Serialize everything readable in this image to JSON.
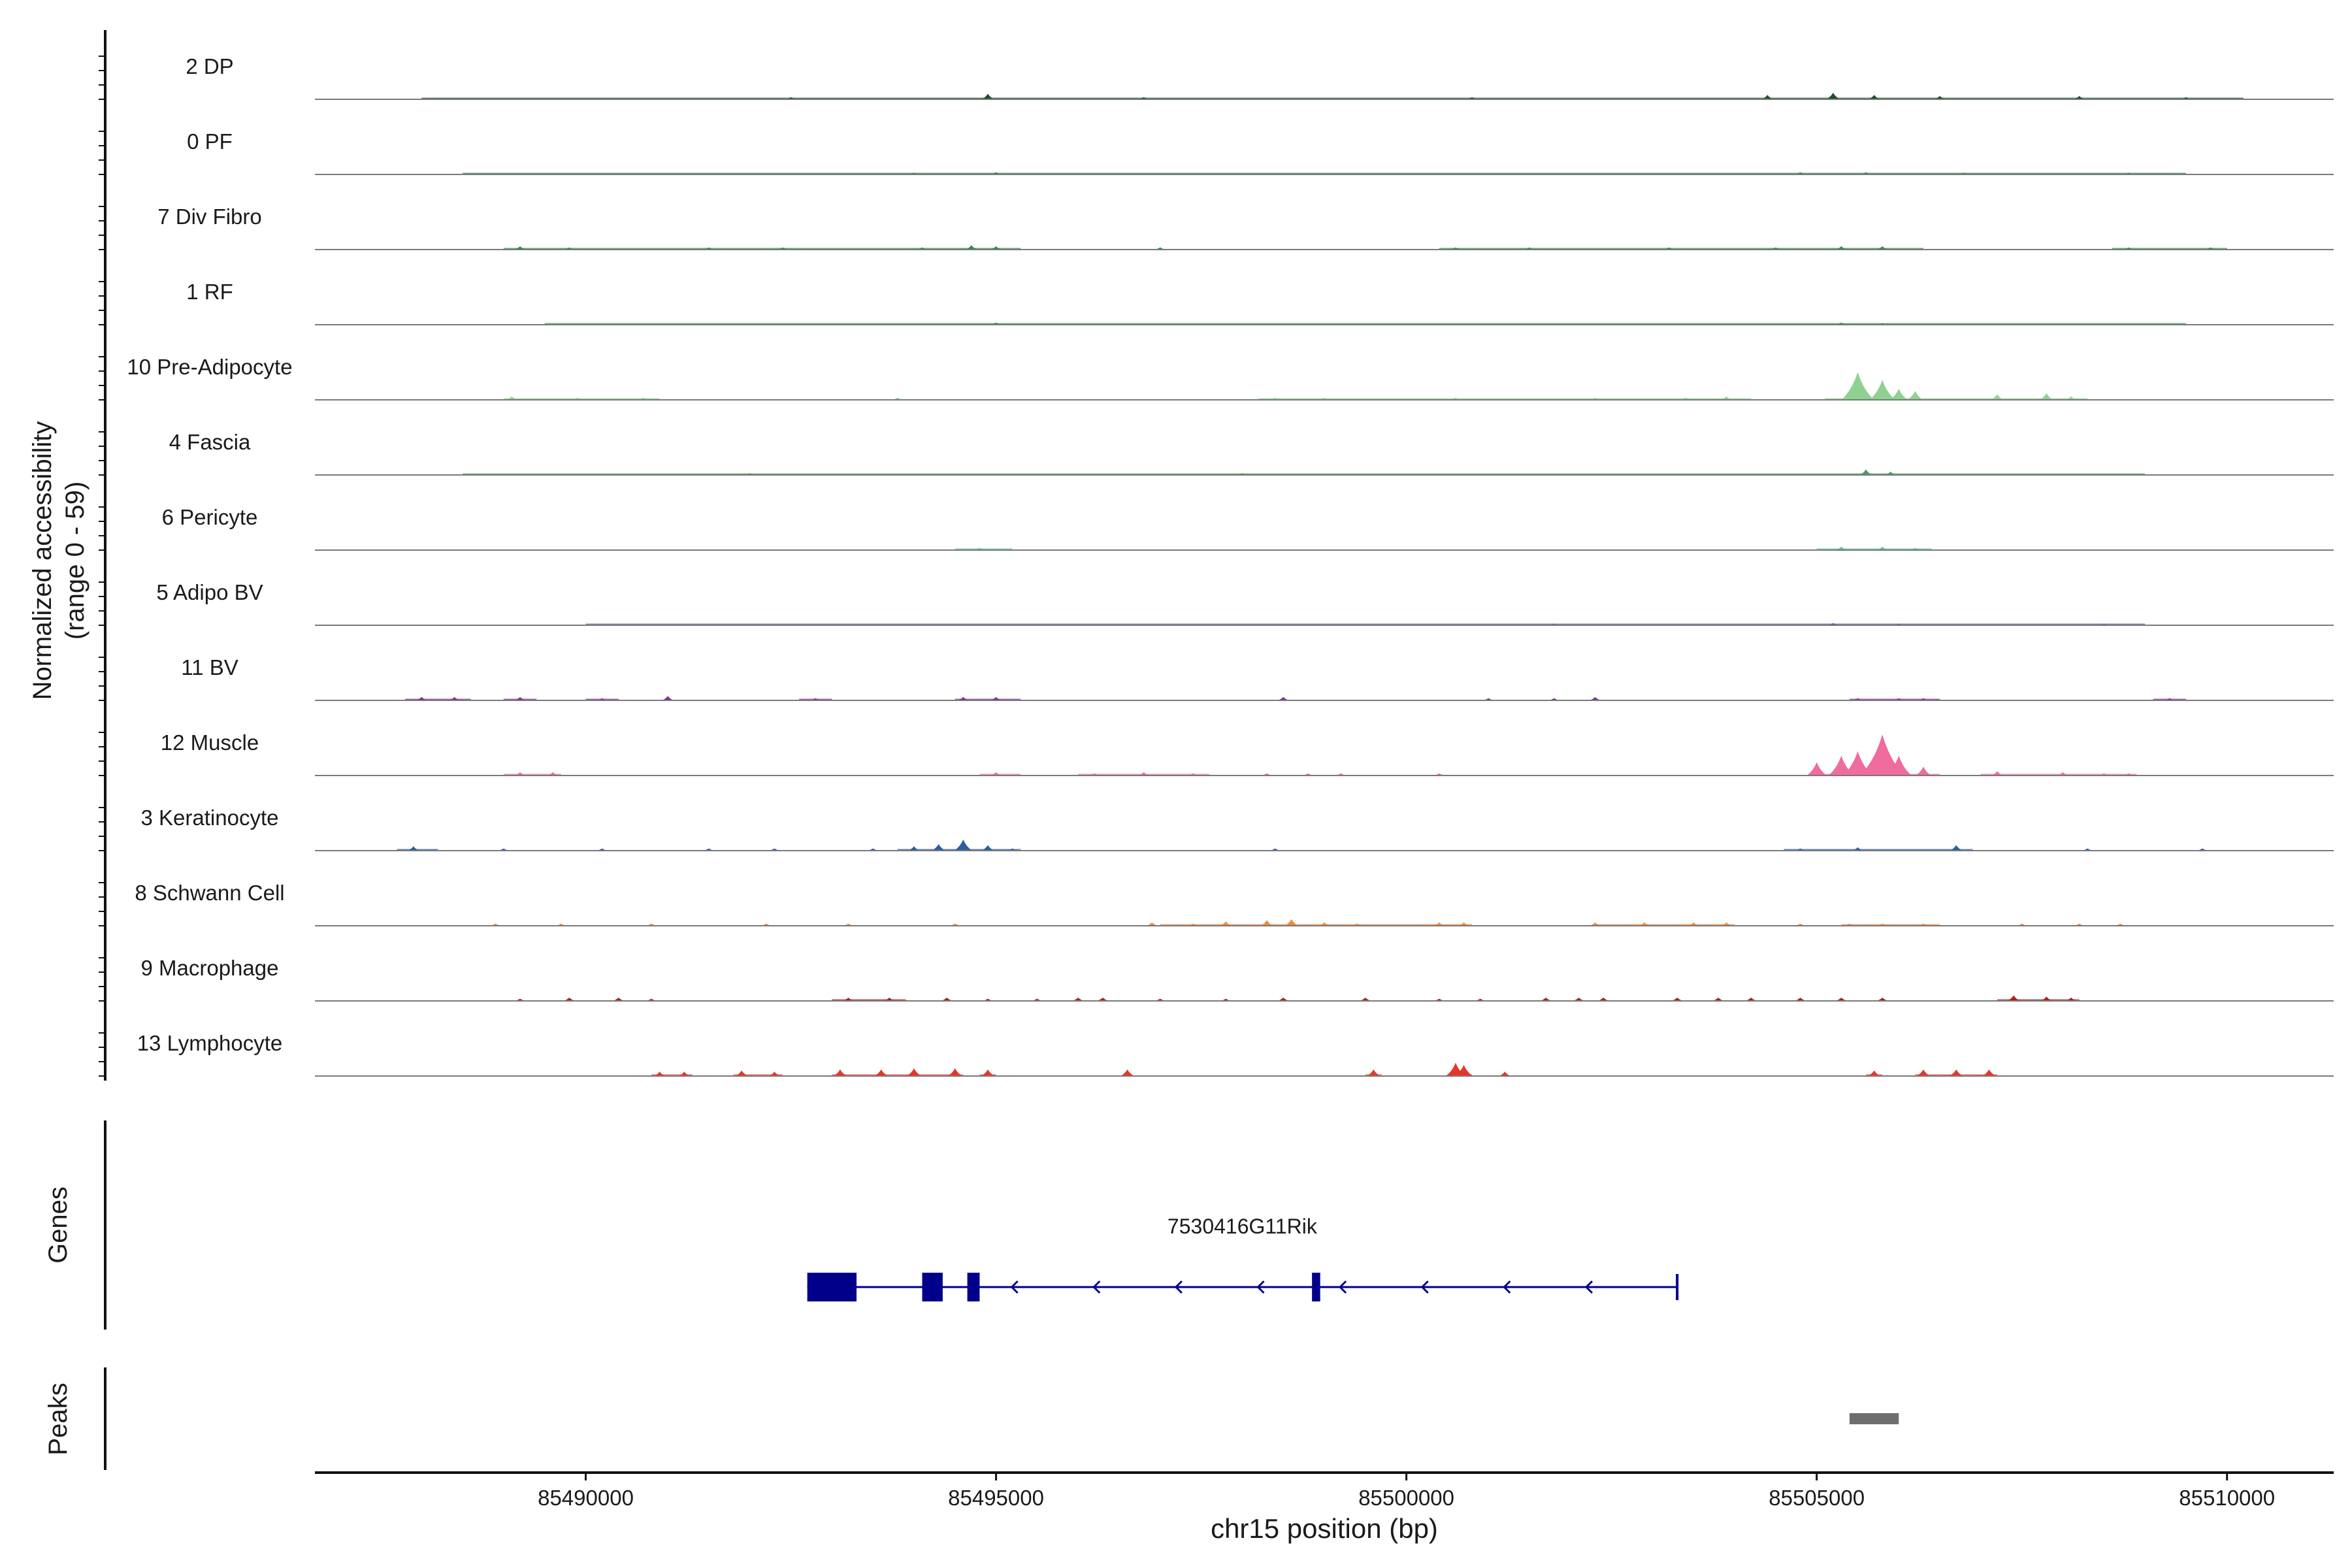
{
  "chart_data": {
    "type": "area",
    "title": "",
    "ylabel_line1": "Normalized accessibility",
    "ylabel_line2": "(range 0 - 59)",
    "y_range": [
      0,
      59
    ],
    "xlabel": "chr15 position (bp)",
    "xlim": [
      85486700,
      85511300
    ],
    "x_ticks": [
      85490000,
      85495000,
      85500000,
      85505000,
      85510000
    ],
    "x_tick_labels": [
      "85490000",
      "85495000",
      "85500000",
      "85505000",
      "85510000"
    ],
    "tracks": [
      {
        "name": "2 DP",
        "color": "#1f4e2c",
        "peaks": [
          [
            85494900,
            5
          ],
          [
            85504400,
            4
          ],
          [
            85505200,
            6
          ],
          [
            85505700,
            4
          ],
          [
            85506500,
            3
          ],
          [
            85500800,
            2
          ],
          [
            85508200,
            3
          ],
          [
            85492500,
            2
          ],
          [
            85496800,
            2
          ],
          [
            85509500,
            2
          ]
        ],
        "base_ranges": [
          [
            85488000,
            85510200
          ]
        ]
      },
      {
        "name": "0 PF",
        "color": "#2e7d4c",
        "peaks": [
          [
            85495000,
            2
          ],
          [
            85494000,
            1.5
          ],
          [
            85504800,
            2
          ],
          [
            85505600,
            2
          ],
          [
            85506800,
            1.5
          ],
          [
            85508800,
            1.5
          ]
        ],
        "base_ranges": [
          [
            85488500,
            85509500
          ]
        ]
      },
      {
        "name": "7 Div Fibro",
        "color": "#2e8b4a",
        "peaks": [
          [
            85489200,
            3
          ],
          [
            85489800,
            2
          ],
          [
            85491500,
            2
          ],
          [
            85492400,
            2
          ],
          [
            85494100,
            2
          ],
          [
            85494700,
            4
          ],
          [
            85495000,
            3
          ],
          [
            85497000,
            2
          ],
          [
            85500600,
            2
          ],
          [
            85501500,
            2
          ],
          [
            85503200,
            2
          ],
          [
            85504500,
            2
          ],
          [
            85505300,
            3
          ],
          [
            85505800,
            3
          ],
          [
            85508800,
            2
          ],
          [
            85509800,
            2
          ]
        ],
        "base_ranges": [
          [
            85489000,
            85495300
          ],
          [
            85500400,
            85506300
          ],
          [
            85508600,
            85510000
          ]
        ]
      },
      {
        "name": "1 RF",
        "color": "#3c8f57",
        "peaks": [
          [
            85495000,
            2
          ],
          [
            85505300,
            2
          ],
          [
            85505800,
            1.5
          ]
        ],
        "base_ranges": [
          [
            85489500,
            85509500
          ]
        ]
      },
      {
        "name": "10 Pre-Adipocyte",
        "color": "#8fd190",
        "peaks": [
          [
            85489100,
            3
          ],
          [
            85489900,
            2
          ],
          [
            85490700,
            2
          ],
          [
            85493800,
            2
          ],
          [
            85498400,
            2
          ],
          [
            85499000,
            2
          ],
          [
            85500600,
            2
          ],
          [
            85502300,
            2
          ],
          [
            85503400,
            2
          ],
          [
            85503900,
            3
          ],
          [
            85505500,
            25
          ],
          [
            85505800,
            18
          ],
          [
            85506000,
            10
          ],
          [
            85506200,
            8
          ],
          [
            85507200,
            5
          ],
          [
            85507800,
            6
          ],
          [
            85508100,
            3
          ]
        ],
        "base_ranges": [
          [
            85489000,
            85490900
          ],
          [
            85498200,
            85504200
          ],
          [
            85505100,
            85508300
          ]
        ]
      },
      {
        "name": "4 Fascia",
        "color": "#4e9a5e",
        "peaks": [
          [
            85505600,
            5
          ],
          [
            85505900,
            3
          ],
          [
            85492000,
            1.5
          ],
          [
            85498000,
            1.5
          ]
        ],
        "base_ranges": [
          [
            85488500,
            85509000
          ]
        ]
      },
      {
        "name": "6 Pericyte",
        "color": "#5bbf9b",
        "peaks": [
          [
            85494800,
            2
          ],
          [
            85505300,
            3
          ],
          [
            85505800,
            3
          ],
          [
            85506200,
            2
          ]
        ],
        "base_ranges": [
          [
            85494500,
            85495200
          ],
          [
            85505000,
            85506400
          ]
        ]
      },
      {
        "name": "5 Adipo BV",
        "color": "#6a4f9c",
        "peaks": [
          [
            85501800,
            1.5
          ],
          [
            85505200,
            2
          ],
          [
            85506000,
            1.5
          ],
          [
            85508500,
            1
          ]
        ],
        "base_ranges": [
          [
            85490000,
            85509000
          ]
        ]
      },
      {
        "name": "11 BV",
        "color": "#7b2d8e",
        "peaks": [
          [
            85488000,
            3
          ],
          [
            85488400,
            3
          ],
          [
            85489200,
            3
          ],
          [
            85490200,
            2
          ],
          [
            85491000,
            4
          ],
          [
            85492800,
            2
          ],
          [
            85495000,
            3
          ],
          [
            85494600,
            3
          ],
          [
            85498500,
            3
          ],
          [
            85501000,
            2
          ],
          [
            85501800,
            2
          ],
          [
            85502300,
            3
          ],
          [
            85505500,
            2
          ],
          [
            85506000,
            2
          ],
          [
            85506300,
            2
          ],
          [
            85509300,
            2
          ]
        ],
        "base_ranges": [
          [
            85487800,
            85488600
          ],
          [
            85489000,
            85489400
          ],
          [
            85490000,
            85490400
          ],
          [
            85492600,
            85493000
          ],
          [
            85494500,
            85495300
          ],
          [
            85505400,
            85506500
          ],
          [
            85509100,
            85509500
          ]
        ]
      },
      {
        "name": "12 Muscle",
        "color": "#f06b9e",
        "peaks": [
          [
            85489200,
            3
          ],
          [
            85489600,
            3
          ],
          [
            85495000,
            3
          ],
          [
            85496200,
            2
          ],
          [
            85496800,
            3
          ],
          [
            85497400,
            2
          ],
          [
            85498300,
            2
          ],
          [
            85498800,
            2
          ],
          [
            85499200,
            2
          ],
          [
            85500400,
            2
          ],
          [
            85505000,
            12
          ],
          [
            85505300,
            18
          ],
          [
            85505500,
            22
          ],
          [
            85505800,
            37
          ],
          [
            85506000,
            18
          ],
          [
            85506300,
            8
          ],
          [
            85507200,
            4
          ],
          [
            85508000,
            3
          ],
          [
            85508500,
            2
          ],
          [
            85508800,
            2
          ]
        ],
        "base_ranges": [
          [
            85489000,
            85489700
          ],
          [
            85494800,
            85495300
          ],
          [
            85496000,
            85497600
          ],
          [
            85504900,
            85506500
          ],
          [
            85507000,
            85508900
          ]
        ]
      },
      {
        "name": "3 Keratinocyte",
        "color": "#2c5f9e",
        "peaks": [
          [
            85487900,
            4
          ],
          [
            85489000,
            2
          ],
          [
            85490200,
            2
          ],
          [
            85491500,
            2
          ],
          [
            85492300,
            2
          ],
          [
            85493500,
            2
          ],
          [
            85494000,
            4
          ],
          [
            85494300,
            6
          ],
          [
            85494600,
            10
          ],
          [
            85494900,
            5
          ],
          [
            85495200,
            2
          ],
          [
            85498400,
            2
          ],
          [
            85504800,
            2
          ],
          [
            85505500,
            3
          ],
          [
            85506700,
            5
          ],
          [
            85508300,
            2
          ],
          [
            85509700,
            2
          ]
        ],
        "base_ranges": [
          [
            85487700,
            85488200
          ],
          [
            85493800,
            85495300
          ],
          [
            85504600,
            85506900
          ]
        ]
      },
      {
        "name": "8 Schwann Cell",
        "color": "#ef8a3d",
        "peaks": [
          [
            85488900,
            2
          ],
          [
            85489700,
            2
          ],
          [
            85490800,
            2
          ],
          [
            85492200,
            2
          ],
          [
            85493200,
            2
          ],
          [
            85494500,
            2
          ],
          [
            85496900,
            3
          ],
          [
            85497400,
            2
          ],
          [
            85497800,
            4
          ],
          [
            85498300,
            5
          ],
          [
            85498600,
            6
          ],
          [
            85499000,
            3
          ],
          [
            85499400,
            2
          ],
          [
            85500400,
            3
          ],
          [
            85500700,
            3
          ],
          [
            85502300,
            3
          ],
          [
            85502900,
            3
          ],
          [
            85503500,
            3
          ],
          [
            85503900,
            3
          ],
          [
            85504800,
            2
          ],
          [
            85505400,
            2
          ],
          [
            85505800,
            2
          ],
          [
            85506300,
            2
          ],
          [
            85507500,
            2
          ],
          [
            85508200,
            2
          ],
          [
            85508700,
            2
          ]
        ],
        "base_ranges": [
          [
            85497000,
            85500800
          ],
          [
            85502300,
            85504000
          ],
          [
            85505300,
            85506500
          ]
        ]
      },
      {
        "name": "9 Macrophage",
        "color": "#b01e1e",
        "peaks": [
          [
            85489200,
            2
          ],
          [
            85489800,
            3
          ],
          [
            85490400,
            3
          ],
          [
            85490800,
            2
          ],
          [
            85493200,
            3
          ],
          [
            85493700,
            3
          ],
          [
            85494400,
            3
          ],
          [
            85494900,
            2
          ],
          [
            85495500,
            2
          ],
          [
            85496000,
            3
          ],
          [
            85496300,
            3
          ],
          [
            85497000,
            2
          ],
          [
            85497800,
            2
          ],
          [
            85498500,
            3
          ],
          [
            85499500,
            3
          ],
          [
            85500400,
            2
          ],
          [
            85500900,
            2
          ],
          [
            85501700,
            3
          ],
          [
            85502100,
            3
          ],
          [
            85502400,
            3
          ],
          [
            85503300,
            3
          ],
          [
            85503800,
            3
          ],
          [
            85504200,
            3
          ],
          [
            85504800,
            3
          ],
          [
            85505300,
            3
          ],
          [
            85505800,
            3
          ],
          [
            85507400,
            5
          ],
          [
            85507800,
            4
          ],
          [
            85508100,
            3
          ]
        ],
        "base_ranges": [
          [
            85493000,
            85493900
          ],
          [
            85507200,
            85508200
          ]
        ]
      },
      {
        "name": "13 Lymphocyte",
        "color": "#e8352a",
        "peaks": [
          [
            85490900,
            4
          ],
          [
            85491200,
            4
          ],
          [
            85491900,
            5
          ],
          [
            85492300,
            4
          ],
          [
            85493100,
            6
          ],
          [
            85493600,
            6
          ],
          [
            85494000,
            7
          ],
          [
            85494500,
            7
          ],
          [
            85494900,
            6
          ],
          [
            85496600,
            6
          ],
          [
            85499600,
            6
          ],
          [
            85500600,
            12
          ],
          [
            85500700,
            10
          ],
          [
            85501200,
            4
          ],
          [
            85505700,
            5
          ],
          [
            85506300,
            6
          ],
          [
            85506700,
            6
          ],
          [
            85507100,
            6
          ]
        ],
        "base_ranges": [
          [
            85490800,
            85491300
          ],
          [
            85491800,
            85492400
          ],
          [
            85493000,
            85494600
          ],
          [
            85494800,
            85495000
          ],
          [
            85499500,
            85499700
          ],
          [
            85500500,
            85500800
          ],
          [
            85505600,
            85505800
          ],
          [
            85506200,
            85507200
          ]
        ]
      }
    ],
    "genes_label": "Genes",
    "gene": {
      "name": "7530416G11Rik",
      "strand": "-",
      "start": 85492700,
      "end": 85503300,
      "exons": [
        [
          85492700,
          85493300
        ],
        [
          85494100,
          85494350
        ],
        [
          85494650,
          85494800
        ],
        [
          85498850,
          85498950
        ]
      ],
      "color": "#00008b"
    },
    "peaks_label": "Peaks",
    "peak_regions": [
      [
        85505400,
        85506000
      ]
    ],
    "peak_color": "#6e6e6e"
  }
}
